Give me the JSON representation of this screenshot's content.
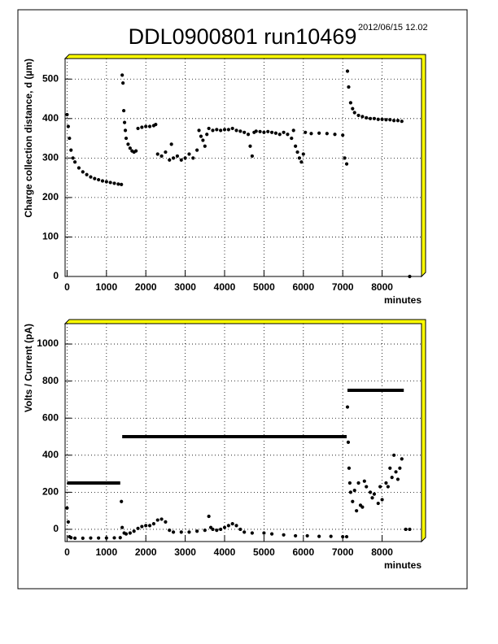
{
  "chart_data": [
    {
      "type": "scatter",
      "title": "DDL0900801  run10469",
      "annotation": "2012/06/15  12.02",
      "xlabel": "minutes",
      "ylabel": "Charge collection distance, d  (µm)",
      "xlim": [
        -50,
        9000
      ],
      "ylim": [
        0,
        552
      ],
      "xticks": [
        0,
        1000,
        2000,
        3000,
        4000,
        5000,
        6000,
        7000,
        8000
      ],
      "yticks": [
        0,
        100,
        200,
        300,
        400,
        500
      ],
      "grid": true,
      "series": [
        {
          "color": "#000000",
          "x": [
            0,
            30,
            60,
            100,
            150,
            200,
            300,
            400,
            500,
            600,
            700,
            800,
            900,
            1000,
            1100,
            1200,
            1300,
            1380,
            1400,
            1420,
            1440,
            1460,
            1480,
            1500,
            1550,
            1600,
            1650,
            1700,
            1750,
            1800,
            1900,
            2000,
            2100,
            2200,
            2250,
            2300,
            2400,
            2500,
            2600,
            2650,
            2700,
            2800,
            2900,
            3000,
            3100,
            3200,
            3300,
            3350,
            3400,
            3450,
            3500,
            3550,
            3600,
            3700,
            3800,
            3900,
            4000,
            4100,
            4200,
            4300,
            4400,
            4500,
            4600,
            4650,
            4700,
            4750,
            4800,
            4900,
            5000,
            5100,
            5200,
            5300,
            5400,
            5500,
            5600,
            5700,
            5750,
            5800,
            5850,
            5900,
            5950,
            6000,
            6050,
            6200,
            6400,
            6600,
            6800,
            7000,
            7050,
            7100,
            7120,
            7150,
            7200,
            7250,
            7300,
            7400,
            7500,
            7600,
            7700,
            7800,
            7900,
            8000,
            8100,
            8200,
            8300,
            8400,
            8500,
            8700
          ],
          "values": [
            410,
            380,
            350,
            320,
            300,
            290,
            275,
            265,
            258,
            252,
            248,
            245,
            242,
            240,
            238,
            236,
            234,
            233,
            510,
            490,
            420,
            390,
            370,
            350,
            335,
            325,
            318,
            315,
            318,
            375,
            378,
            380,
            380,
            382,
            385,
            310,
            305,
            315,
            295,
            335,
            300,
            305,
            295,
            300,
            310,
            300,
            320,
            370,
            355,
            345,
            330,
            360,
            375,
            370,
            372,
            370,
            372,
            372,
            375,
            370,
            368,
            365,
            360,
            330,
            305,
            365,
            368,
            367,
            365,
            367,
            365,
            363,
            360,
            365,
            360,
            350,
            370,
            330,
            315,
            300,
            290,
            310,
            365,
            362,
            363,
            362,
            360,
            358,
            300,
            285,
            520,
            480,
            440,
            425,
            415,
            408,
            405,
            402,
            400,
            400,
            398,
            398,
            397,
            397,
            395,
            395,
            393,
            0
          ]
        }
      ]
    },
    {
      "type": "scatter",
      "xlabel": "minutes",
      "ylabel": "Volts / Current  (pA)",
      "xlim": [
        -50,
        9000
      ],
      "ylim": [
        -66,
        1110
      ],
      "xticks": [
        0,
        1000,
        2000,
        3000,
        4000,
        5000,
        6000,
        7000,
        8000
      ],
      "yticks": [
        0,
        200,
        400,
        600,
        800,
        1000
      ],
      "grid": true,
      "series": [
        {
          "color": "#000000",
          "x": [
            0,
            30,
            60,
            100,
            200,
            400,
            600,
            800,
            1000,
            1200,
            1350,
            1380,
            1400,
            1450,
            1500,
            1600,
            1700,
            1800,
            1900,
            2000,
            2100,
            2200,
            2300,
            2400,
            2500,
            2600,
            2700,
            2900,
            3100,
            3300,
            3500,
            3600,
            3650,
            3700,
            3800,
            3900,
            4000,
            4100,
            4200,
            4300,
            4400,
            4500,
            4700,
            5000,
            5200,
            5500,
            5800,
            6100,
            6400,
            6700,
            7000,
            7100,
            7120,
            7140,
            7160,
            7180,
            7200,
            7250,
            7300,
            7350,
            7400,
            7450,
            7500,
            7550,
            7600,
            7700,
            7750,
            7800,
            7900,
            7950,
            8000,
            8100,
            8150,
            8200,
            8250,
            8300,
            8350,
            8400,
            8450,
            8500,
            8600,
            8700
          ],
          "values": [
            115,
            40,
            -40,
            -45,
            -48,
            -48,
            -47,
            -47,
            -47,
            -46,
            -45,
            150,
            10,
            -20,
            -25,
            -20,
            -10,
            5,
            15,
            20,
            20,
            30,
            50,
            55,
            40,
            -5,
            -15,
            -15,
            -15,
            -10,
            -5,
            70,
            10,
            0,
            -5,
            0,
            10,
            20,
            30,
            20,
            0,
            -15,
            -20,
            -20,
            -25,
            -30,
            -35,
            -35,
            -38,
            -38,
            -40,
            -40,
            660,
            470,
            330,
            250,
            200,
            150,
            210,
            100,
            250,
            130,
            120,
            260,
            230,
            200,
            170,
            190,
            140,
            230,
            160,
            250,
            230,
            330,
            280,
            400,
            310,
            270,
            330,
            380,
            0,
            0
          ]
        },
        {
          "type": "line",
          "color": "#000000",
          "x": [
            0,
            1350,
            1360,
            1400,
            7100,
            7110,
            7120,
            8550
          ],
          "values": [
            250,
            250,
            null,
            500,
            500,
            null,
            750,
            750
          ]
        }
      ]
    }
  ]
}
